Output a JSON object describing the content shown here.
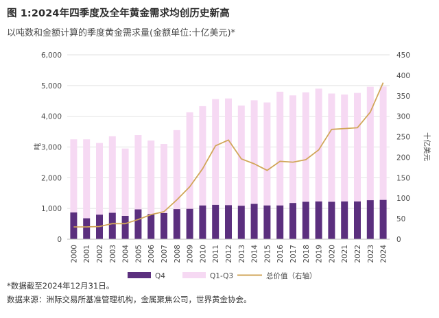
{
  "title": "图 1:2024年四季度及全年黄金需求均创历史新高",
  "subtitle": "以吨数和金额计算的季度黄金需求量(金额单位:十亿美元)*",
  "footnote": "*数据截至2024年12月31日。",
  "source": "数据来源：洲际交易所基准管理机构，金属聚焦公司，世界黄金协会。",
  "colors": {
    "q4": "#5b2f7e",
    "q1q3": "#f6d9f3",
    "line": "#d1a659",
    "grid": "#e2e2e2",
    "axis": "#bdbdbd"
  },
  "chart_data": {
    "type": "bar",
    "stacked": true,
    "categories": [
      "2000",
      "2001",
      "2002",
      "2003",
      "2004",
      "2005",
      "2006",
      "2007",
      "2008",
      "2009",
      "2010",
      "2011",
      "2012",
      "2013",
      "2014",
      "2015",
      "2016",
      "2017",
      "2018",
      "2019",
      "2020",
      "2021",
      "2022",
      "2023",
      "2024"
    ],
    "series": [
      {
        "name": "Q4",
        "axis": "left",
        "values": [
          870,
          680,
          800,
          860,
          760,
          970,
          820,
          850,
          980,
          990,
          1100,
          1120,
          1110,
          1090,
          1150,
          1100,
          1100,
          1180,
          1220,
          1230,
          1220,
          1230,
          1230,
          1270,
          1280
        ]
      },
      {
        "name": "Q1-Q3",
        "axis": "left",
        "values": [
          2380,
          2570,
          2330,
          2490,
          2190,
          2420,
          2390,
          2250,
          2570,
          3140,
          3230,
          3440,
          3470,
          3260,
          3370,
          3350,
          3700,
          3500,
          3560,
          3670,
          3520,
          3480,
          3530,
          3690,
          3690
        ]
      },
      {
        "name": "总价值（右轴）",
        "type": "line",
        "axis": "right",
        "values": [
          30,
          30,
          31,
          38,
          38,
          48,
          60,
          67,
          96,
          128,
          172,
          228,
          242,
          196,
          184,
          168,
          190,
          188,
          194,
          218,
          268,
          270,
          272,
          310,
          382
        ]
      }
    ],
    "ylabel": "吨",
    "y2label": "十亿美元",
    "ylim": [
      0,
      6000
    ],
    "y2lim": [
      0,
      450
    ],
    "yticks": [
      "0",
      "1,000",
      "2,000",
      "3,000",
      "4,000",
      "5,000",
      "6,000"
    ],
    "y2ticks": [
      "0",
      "50",
      "100",
      "150",
      "200",
      "250",
      "300",
      "350",
      "400",
      "450"
    ],
    "grid": true,
    "legend": "bottom"
  }
}
